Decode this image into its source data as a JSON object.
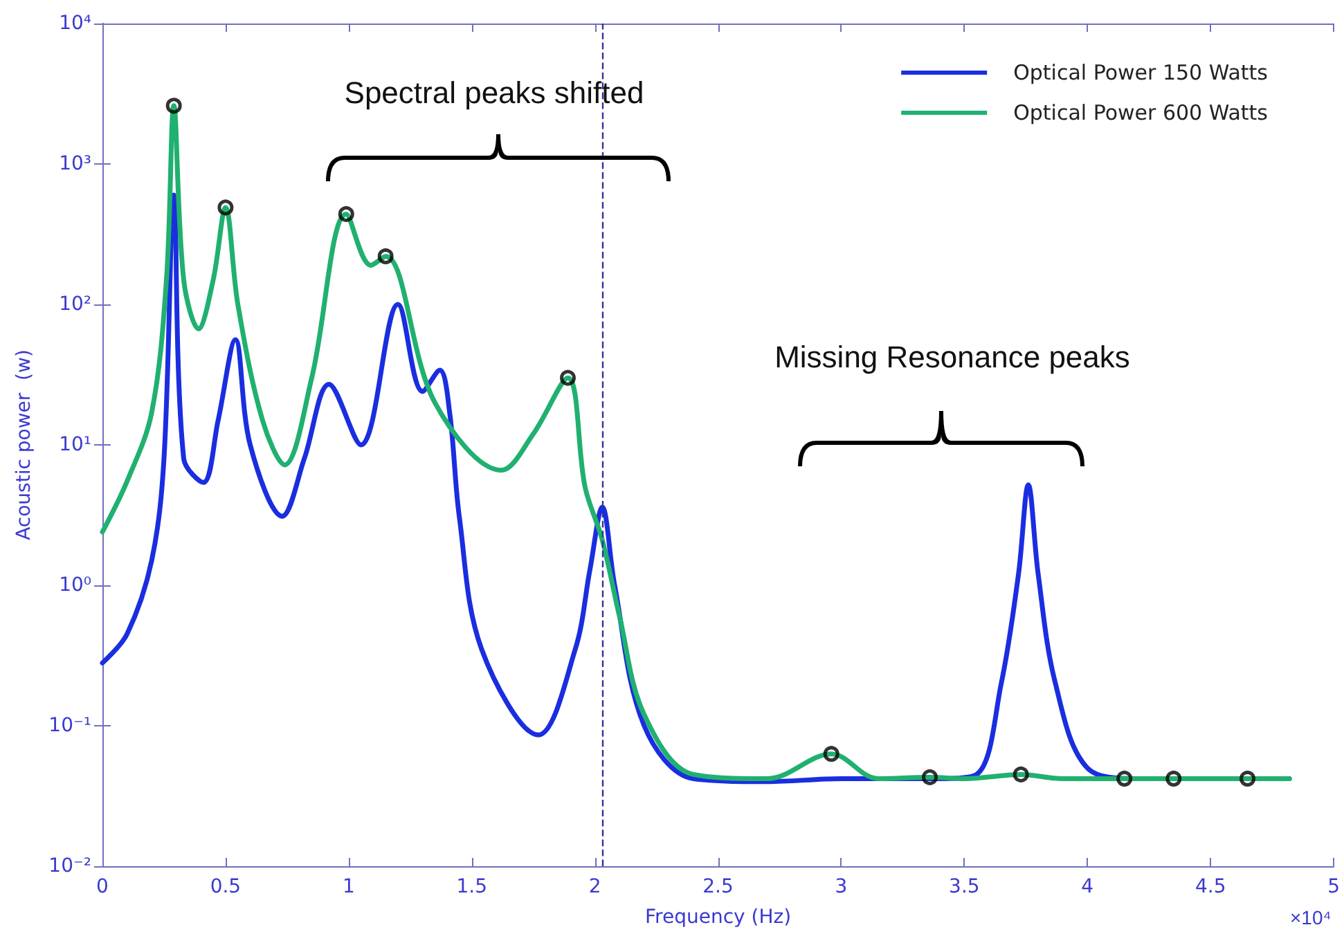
{
  "chart_data": {
    "type": "line",
    "xlabel": "Frequency (Hz)",
    "ylabel": "Acoustic power  (w)",
    "annotations": [
      "Spectral peaks shifted",
      "Missing Resonance peaks",
      "×10⁴"
    ],
    "log": "y",
    "grid": false,
    "legend": "top right",
    "line_style": "solid",
    "marker": "none",
    "xlim": [
      0,
      5
    ],
    "xticks": [
      0,
      0.5,
      1,
      1.5,
      2,
      2.5,
      3,
      3.5,
      4,
      4.5,
      5
    ],
    "ylim": [
      0.01,
      10000
    ],
    "yticks": [
      {
        "value": 0.01,
        "label": "10⁻²"
      },
      {
        "value": 0.1,
        "label": "10⁻¹"
      },
      {
        "value": 1,
        "label": "10⁰"
      },
      {
        "value": 10,
        "label": "10¹"
      },
      {
        "value": 100,
        "label": "10²"
      },
      {
        "value": 1000,
        "label": "10³"
      },
      {
        "value": 10000,
        "label": "10⁴"
      }
    ],
    "ref_lines": [
      {
        "axis": "x",
        "value": 2.03,
        "label": null,
        "color": "#333399",
        "line_style": "dashed"
      }
    ],
    "series": [
      {
        "name": "Optical Power 150 Watts",
        "color": "#1a2ee0",
        "x": [
          0,
          0.1,
          0.2,
          0.25,
          0.29,
          0.33,
          0.41,
          0.47,
          0.54,
          0.6,
          0.73,
          0.82,
          0.92,
          1.05,
          1.2,
          1.3,
          1.37,
          1.41,
          1.45,
          1.54,
          1.77,
          1.92,
          1.98,
          2.03,
          2.08,
          2.2,
          2.4,
          2.7,
          3.0,
          3.4,
          3.55,
          3.65,
          3.72,
          3.76,
          3.8,
          3.87,
          4.0,
          4.2,
          4.82
        ],
        "values": [
          0.28,
          0.45,
          1.5,
          8,
          600,
          8,
          5.4,
          15,
          56,
          10,
          3.1,
          8,
          27,
          10,
          100,
          24,
          34,
          17,
          3,
          0.35,
          0.086,
          0.35,
          1.3,
          3.6,
          1,
          0.1,
          0.042,
          0.04,
          0.042,
          0.042,
          0.045,
          0.2,
          1.2,
          5.2,
          1.2,
          0.2,
          0.05,
          0.042,
          0.042
        ]
      },
      {
        "name": "Optical Power 600 Watts",
        "color": "#20b070",
        "x": [
          0,
          0.1,
          0.2,
          0.26,
          0.29,
          0.33,
          0.39,
          0.45,
          0.5,
          0.55,
          0.65,
          0.74,
          0.85,
          0.99,
          1.09,
          1.15,
          1.35,
          1.62,
          1.75,
          1.89,
          1.96,
          2.03,
          2.1,
          2.2,
          2.4,
          2.7,
          2.96,
          3.15,
          3.36,
          3.5,
          3.73,
          3.9,
          4.15,
          4.35,
          4.65,
          4.82
        ],
        "values": [
          2.4,
          5.5,
          17,
          150,
          2600,
          150,
          67,
          150,
          490,
          100,
          15,
          7.2,
          30,
          440,
          190,
          220,
          20,
          6.6,
          12,
          30,
          5,
          2.1,
          0.6,
          0.12,
          0.045,
          0.042,
          0.063,
          0.042,
          0.043,
          0.042,
          0.045,
          0.042,
          0.042,
          0.042,
          0.042,
          0.042
        ]
      },
      {
        "type": "scatter",
        "color": "#000000",
        "marker": "circle",
        "x": [
          0.29,
          0.5,
          0.99,
          1.15,
          1.89,
          2.96,
          3.36,
          3.73,
          4.15,
          4.35,
          4.65
        ],
        "values": [
          2600,
          490,
          440,
          220,
          30,
          0.063,
          0.043,
          0.045,
          0.042,
          0.042,
          0.042
        ]
      }
    ]
  }
}
